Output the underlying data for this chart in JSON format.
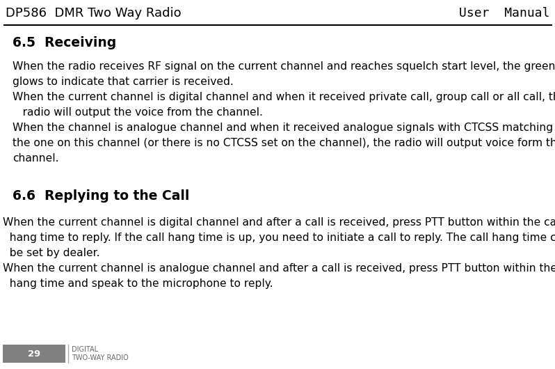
{
  "header_left": "DP586  DMR Two Way Radio",
  "header_right": "User  Manual",
  "bg_color": "#ffffff",
  "section_65_title": "6.5  Receiving",
  "section_66_title": "6.6  Replying to the Call",
  "para1": [
    "When the radio receives RF signal on the current channel and reaches squelch start level, the green LED",
    "glows to indicate that carrier is received."
  ],
  "para2": [
    "When the current channel is digital channel and when it received private call, group call or all call, the",
    "   radio will output the voice from the channel."
  ],
  "para3": [
    "When the channel is analogue channel and when it received analogue signals with CTCSS matching",
    "the one on this channel (or there is no CTCSS set on the channel), the radio will output voice form the",
    "channel."
  ],
  "para4": [
    "When the current channel is digital channel and after a call is received, press PTT button within the call",
    "  hang time to reply. If the call hang time is up, you need to initiate a call to reply. The call hang time can",
    "  be set by dealer."
  ],
  "para5": [
    "When the current channel is analogue channel and after a call is received, press PTT button within the call",
    "  hang time and speak to the microphone to reply."
  ],
  "footer_page": "29",
  "footer_text1": "DIGITAL",
  "footer_text2": "TWO-WAY RADIO",
  "header_font_size": 13.0,
  "section_font_size": 13.5,
  "body_font_size": 11.2,
  "footer_num_size": 9.5,
  "footer_sub_size": 7.0
}
